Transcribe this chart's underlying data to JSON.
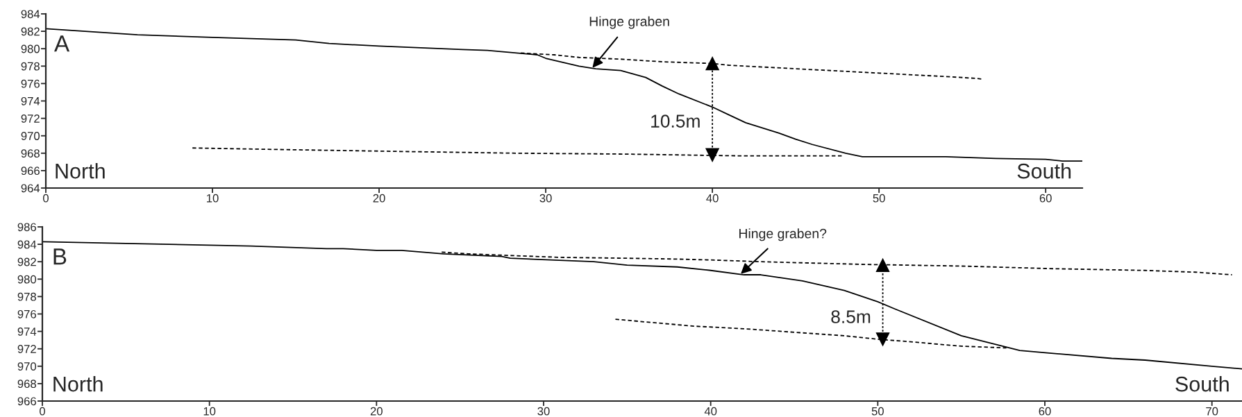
{
  "chart_data": [
    {
      "type": "line",
      "xlim": [
        0,
        62.2
      ],
      "ylim": [
        964,
        984
      ],
      "xticks": [
        0,
        10,
        20,
        30,
        40,
        50,
        60
      ],
      "yticks": [
        964,
        966,
        968,
        970,
        972,
        974,
        976,
        978,
        980,
        982,
        984
      ],
      "grid": false,
      "legend": false,
      "series": [
        {
          "color": "#000000",
          "line_style": "solid",
          "x": [
            0,
            5.5,
            10,
            15,
            17,
            20,
            25,
            26.5,
            29.5,
            30,
            32,
            33,
            34.5,
            36,
            37,
            38,
            40,
            41,
            42,
            44,
            45,
            46,
            48,
            49,
            54,
            57,
            60,
            61,
            62.2
          ],
          "values": [
            982.3,
            981.6,
            981.3,
            981.0,
            980.6,
            980.3,
            979.9,
            979.8,
            979.3,
            978.9,
            978.0,
            977.7,
            977.5,
            976.7,
            975.7,
            974.8,
            973.3,
            972.4,
            971.5,
            970.3,
            969.6,
            969.0,
            968.0,
            967.6,
            967.6,
            967.4,
            967.3,
            967.1,
            967.1
          ]
        },
        {
          "color": "#000000",
          "line_style": "dashed",
          "x": [
            28.5,
            30.5,
            32,
            34.5,
            37,
            40,
            41,
            43,
            46,
            48,
            50,
            52,
            54,
            55.8,
            56.2
          ],
          "values": [
            979.5,
            979.3,
            979.0,
            978.8,
            978.5,
            978.3,
            978.1,
            977.9,
            977.6,
            977.4,
            977.2,
            977.0,
            976.8,
            976.6,
            976.5
          ]
        },
        {
          "color": "#000000",
          "line_style": "dashed",
          "x": [
            8.8,
            14.7,
            21.3,
            28.2,
            34.7,
            41.5,
            47.8
          ],
          "values": [
            968.6,
            968.4,
            968.2,
            968.0,
            967.9,
            967.7,
            967.7
          ]
        },
        {
          "color": "#000000",
          "line_style": "dotted",
          "marker": "triangle",
          "x": [
            40,
            40
          ],
          "values": [
            967.8,
            978.3
          ]
        }
      ],
      "annotations": [
        "A",
        "North",
        "South",
        {
          "text": "Hinge graben",
          "x": 32.8,
          "y": 977.8
        },
        {
          "text": "10.5m",
          "x": 40,
          "y": 971.5
        }
      ]
    },
    {
      "type": "line",
      "xlim": [
        0,
        71.8
      ],
      "ylim": [
        966,
        986
      ],
      "xticks": [
        0,
        10,
        20,
        30,
        40,
        50,
        60,
        70
      ],
      "yticks": [
        966,
        968,
        970,
        972,
        974,
        976,
        978,
        980,
        982,
        984,
        986
      ],
      "grid": false,
      "legend": false,
      "series": [
        {
          "color": "#000000",
          "line_style": "solid",
          "x": [
            0,
            5,
            12.5,
            17,
            18,
            20,
            21.5,
            24,
            27.5,
            28,
            33,
            35,
            38,
            40,
            42,
            43,
            45.5,
            48,
            50,
            51,
            55,
            58.5,
            64,
            66,
            70,
            71.8
          ],
          "values": [
            984.3,
            984.1,
            983.8,
            983.5,
            983.5,
            983.3,
            983.3,
            982.9,
            982.6,
            982.4,
            982.0,
            981.6,
            981.4,
            981.0,
            980.5,
            980.5,
            979.8,
            978.7,
            977.4,
            976.6,
            973.5,
            971.8,
            970.9,
            970.7,
            970.0,
            969.7
          ]
        },
        {
          "color": "#000000",
          "line_style": "dashed",
          "x": [
            23.9,
            25.5,
            28.2,
            31,
            35,
            38,
            40,
            43,
            49,
            52,
            55,
            60.5,
            66,
            69,
            71.2
          ],
          "values": [
            983.1,
            982.9,
            982.7,
            982.5,
            982.4,
            982.3,
            982.2,
            982.0,
            981.7,
            981.6,
            981.5,
            981.2,
            981.0,
            980.8,
            980.5
          ]
        },
        {
          "color": "#000000",
          "line_style": "dashed",
          "x": [
            34.3,
            36,
            39,
            42,
            45,
            48,
            50,
            52,
            55,
            57.7
          ],
          "values": [
            975.4,
            975.1,
            974.6,
            974.3,
            973.9,
            973.5,
            973.1,
            972.8,
            972.3,
            972.1
          ]
        },
        {
          "color": "#000000",
          "line_style": "dotted",
          "marker": "triangle",
          "x": [
            50.3,
            50.3
          ],
          "values": [
            973.1,
            981.6
          ]
        }
      ],
      "annotations": [
        "B",
        "North",
        "South",
        {
          "text": "Hinge graben?",
          "x": 41.8,
          "y": 980.6
        },
        {
          "text": "8.5m",
          "x": 50.3,
          "y": 975.5
        }
      ]
    }
  ]
}
